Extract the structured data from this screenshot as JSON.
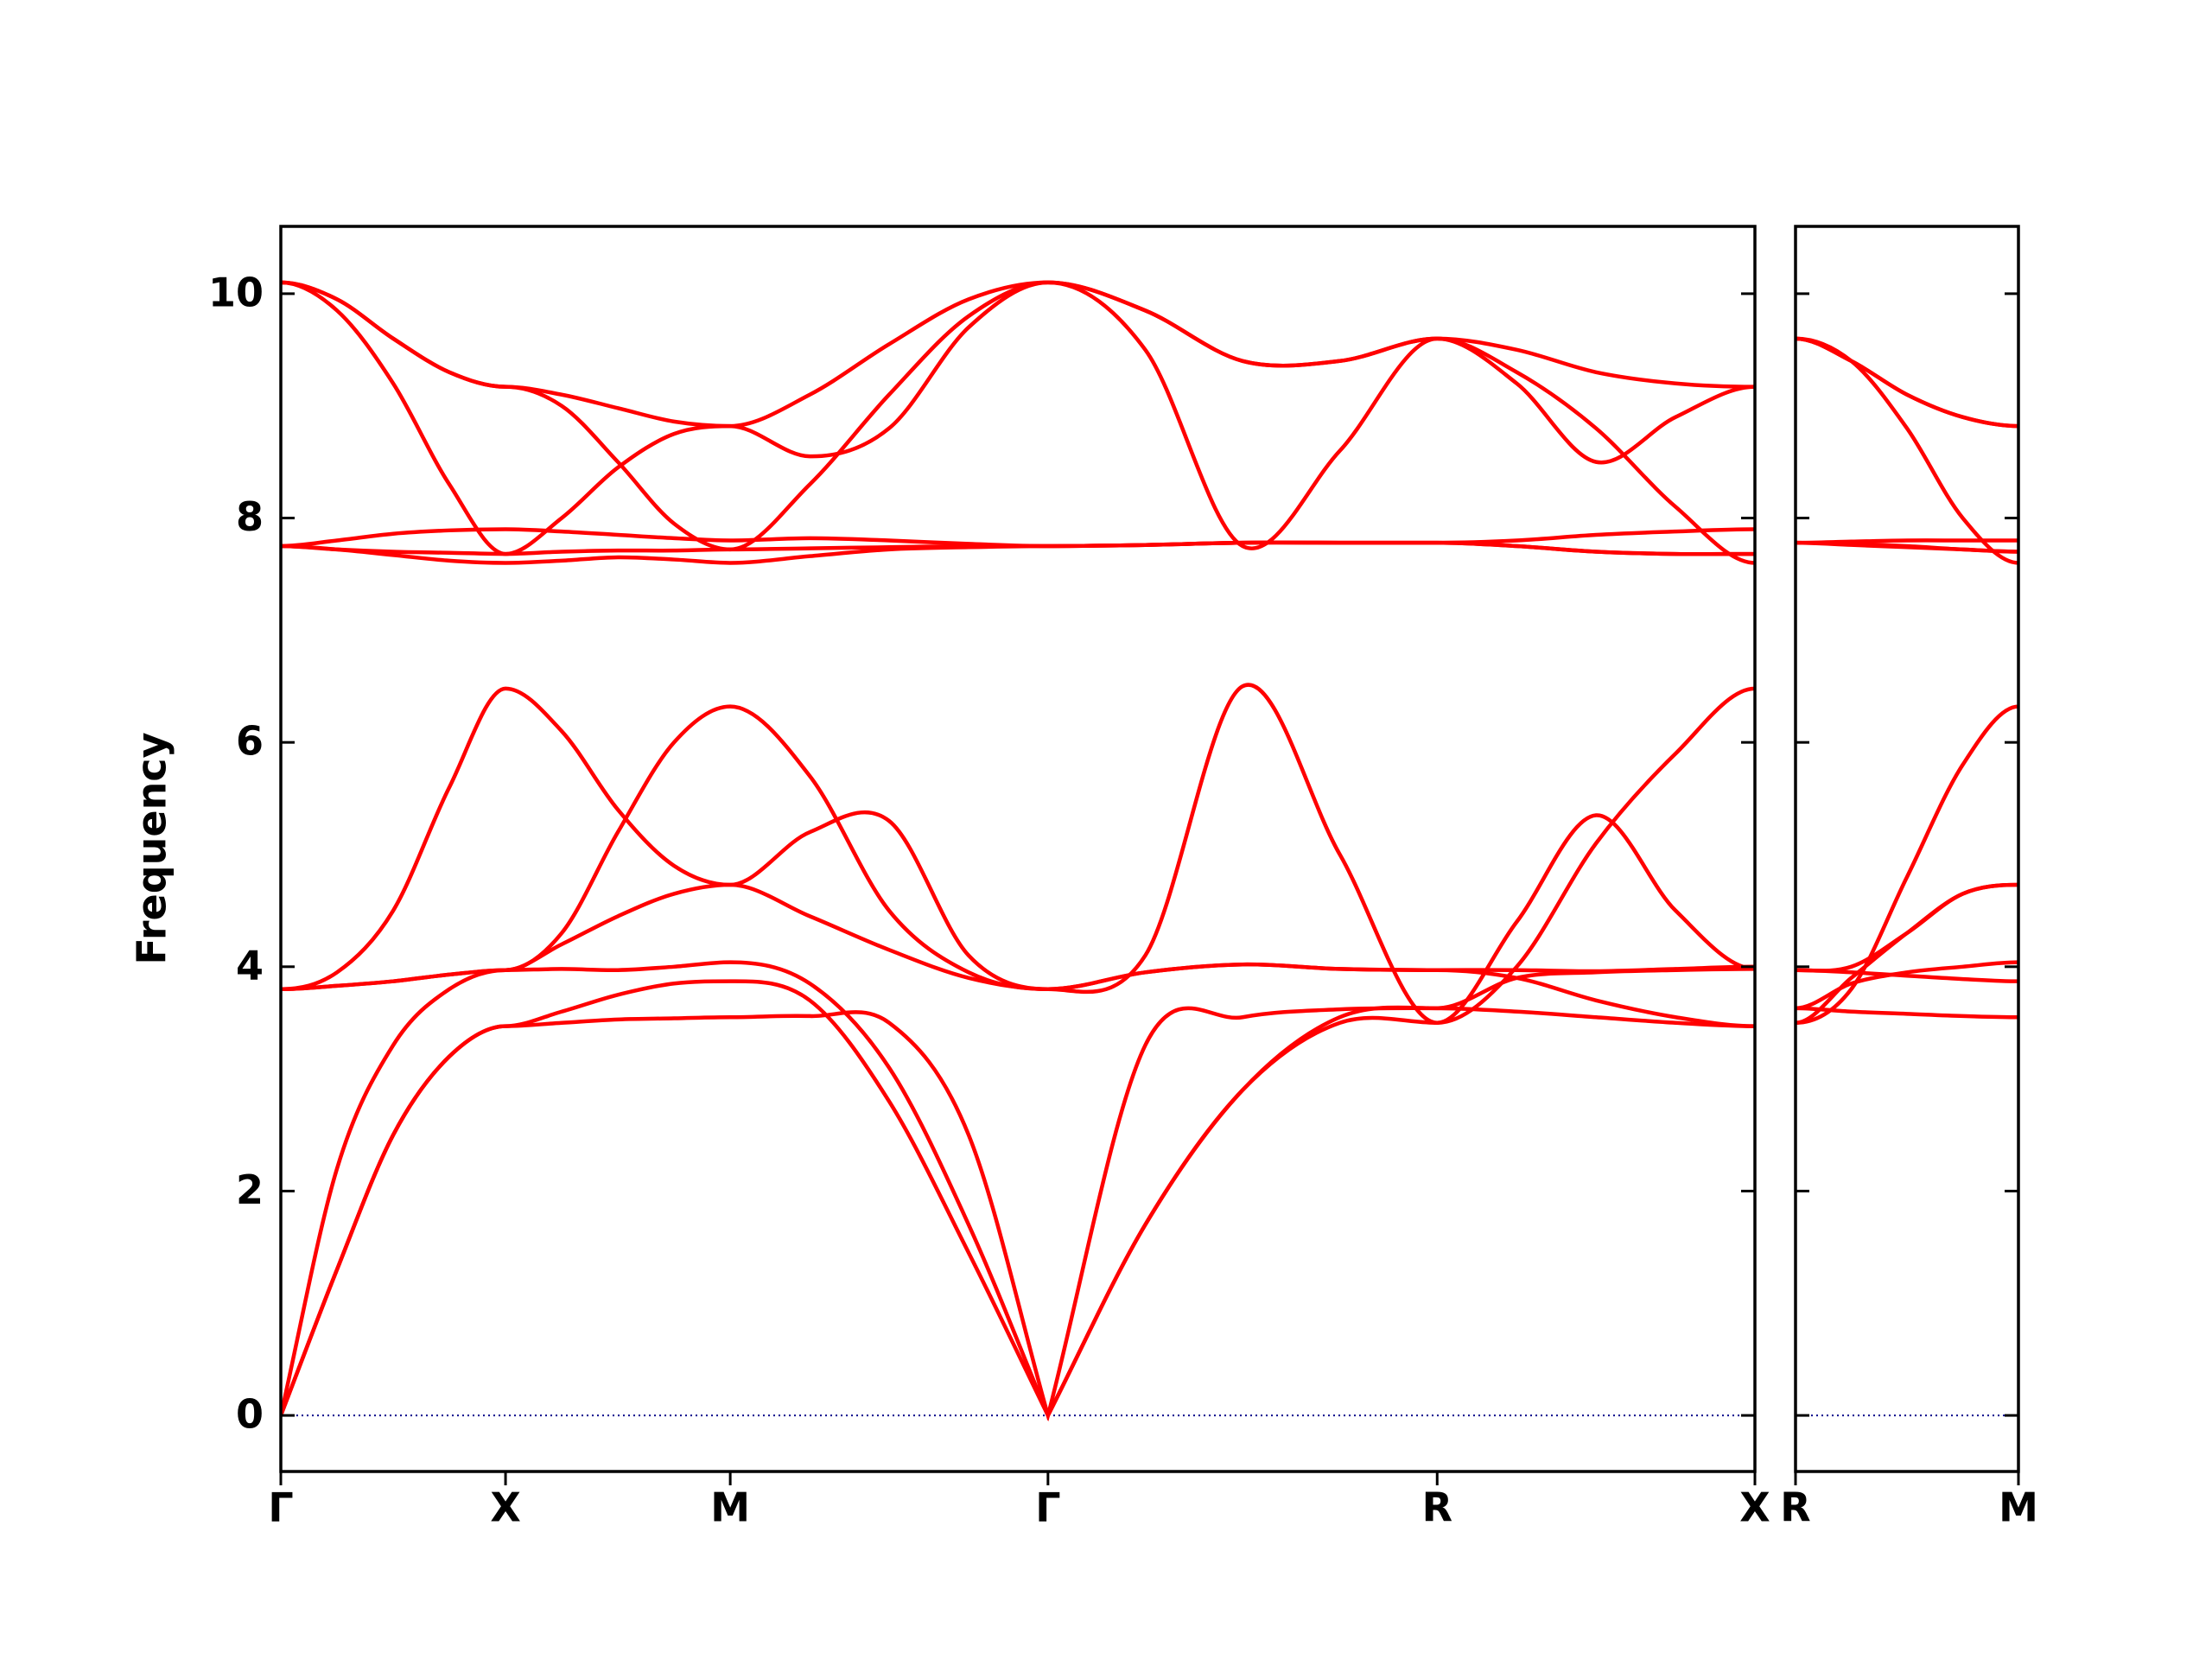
{
  "chart_data": [
    {
      "type": "line",
      "ylabel": "Frequency",
      "xlim": [
        0,
        6.56
      ],
      "ylim": [
        -0.5,
        10.6
      ],
      "xticks": [
        {
          "value": 0,
          "label": "Γ"
        },
        {
          "value": 1,
          "label": "X"
        },
        {
          "value": 2,
          "label": "M"
        },
        {
          "value": 3.414,
          "label": "Γ"
        },
        {
          "value": 5.146,
          "label": "R"
        },
        {
          "value": 6.56,
          "label": "X"
        }
      ],
      "yticks": [
        0,
        2,
        4,
        6,
        8,
        10
      ],
      "show_ytick_labels": true,
      "hline": {
        "value": 0,
        "color": "#00008b"
      },
      "x": [
        0,
        0.25,
        0.5,
        0.75,
        1,
        1.25,
        1.5,
        1.75,
        2,
        2.354,
        2.707,
        3.061,
        3.414,
        3.847,
        4.28,
        4.713,
        5.146,
        5.5,
        5.853,
        6.207,
        6.56
      ],
      "series": [
        {
          "color": "#ff0000",
          "values": [
            0,
            1.3,
            2.5,
            3.2,
            3.47,
            3.5,
            3.53,
            3.54,
            3.55,
            3.56,
            3.5,
            2.5,
            0,
            1.7,
            2.9,
            3.55,
            3.63,
            3.6,
            3.55,
            3.5,
            3.47
          ]
        },
        {
          "color": "#ff0000",
          "values": [
            0,
            1.3,
            2.5,
            3.2,
            3.47,
            3.6,
            3.75,
            3.85,
            3.87,
            3.7,
            2.8,
            1.45,
            0,
            1.7,
            2.9,
            3.5,
            3.5,
            4.4,
            5.35,
            4.5,
            3.98
          ]
        },
        {
          "color": "#ff0000",
          "values": [
            0,
            2.2,
            3.3,
            3.8,
            3.97,
            3.98,
            3.97,
            4.0,
            4.04,
            3.85,
            3.1,
            1.7,
            0,
            3.3,
            3.55,
            3.62,
            3.63,
            3.9,
            3.95,
            3.97,
            3.98
          ]
        },
        {
          "color": "#ff0000",
          "values": [
            3.8,
            3.83,
            3.87,
            3.93,
            3.97,
            4.2,
            4.45,
            4.65,
            4.73,
            4.45,
            4.15,
            3.9,
            3.8,
            3.95,
            4.02,
            3.98,
            3.97,
            3.97,
            3.96,
            3.98,
            4.0
          ]
        },
        {
          "color": "#ff0000",
          "values": [
            3.8,
            3.83,
            3.87,
            3.93,
            3.97,
            4.3,
            5.2,
            6.0,
            6.32,
            5.7,
            4.5,
            3.95,
            3.8,
            3.95,
            4.02,
            3.98,
            3.97,
            3.9,
            3.7,
            3.55,
            3.47
          ]
        },
        {
          "color": "#ff0000",
          "values": [
            3.8,
            3.95,
            4.5,
            5.6,
            6.48,
            6.1,
            5.4,
            4.9,
            4.73,
            5.2,
            5.3,
            4.1,
            3.8,
            4.1,
            6.5,
            5.0,
            3.5,
            4.0,
            5.1,
            5.9,
            6.48
          ]
        },
        {
          "color": "#ff0000",
          "values": [
            7.75,
            7.8,
            7.86,
            7.89,
            7.9,
            7.88,
            7.85,
            7.82,
            7.8,
            7.82,
            7.8,
            7.77,
            7.75,
            7.76,
            7.78,
            7.78,
            7.78,
            7.8,
            7.85,
            7.88,
            7.9
          ]
        },
        {
          "color": "#ff0000",
          "values": [
            7.75,
            7.72,
            7.67,
            7.62,
            7.6,
            7.62,
            7.65,
            7.63,
            7.6,
            7.66,
            7.72,
            7.74,
            7.75,
            7.76,
            7.78,
            7.78,
            7.78,
            7.75,
            7.7,
            7.68,
            7.68
          ]
        },
        {
          "color": "#ff0000",
          "values": [
            7.75,
            7.72,
            7.7,
            7.69,
            7.68,
            8.0,
            8.45,
            8.75,
            8.82,
            8.55,
            8.8,
            9.7,
            10.1,
            9.85,
            9.4,
            9.4,
            9.6,
            9.5,
            9.3,
            9.2,
            9.17
          ]
        },
        {
          "color": "#ff0000",
          "values": [
            10.1,
            9.85,
            9.2,
            8.3,
            7.68,
            7.7,
            7.71,
            7.71,
            7.72,
            7.73,
            7.74,
            7.75,
            7.75,
            7.76,
            7.78,
            7.78,
            7.78,
            7.75,
            7.7,
            7.68,
            7.68
          ]
        },
        {
          "color": "#ff0000",
          "values": [
            10.1,
            9.95,
            9.6,
            9.3,
            9.17,
            9.0,
            8.5,
            7.95,
            7.72,
            8.3,
            9.1,
            9.8,
            10.1,
            9.5,
            7.75,
            8.6,
            9.6,
            9.3,
            8.8,
            8.1,
            7.6
          ]
        },
        {
          "color": "#ff0000",
          "values": [
            10.1,
            9.95,
            9.6,
            9.3,
            9.17,
            9.1,
            8.98,
            8.86,
            8.82,
            9.1,
            9.55,
            9.95,
            10.1,
            9.85,
            9.4,
            9.4,
            9.6,
            9.2,
            8.5,
            8.9,
            9.17
          ]
        }
      ]
    },
    {
      "type": "line",
      "xlim": [
        0,
        1
      ],
      "ylim": [
        -0.5,
        10.6
      ],
      "xticks": [
        {
          "value": 0,
          "label": "R"
        },
        {
          "value": 1,
          "label": "M"
        }
      ],
      "yticks": [
        0,
        2,
        4,
        6,
        8,
        10
      ],
      "show_ytick_labels": false,
      "hline": {
        "value": 0,
        "color": "#00008b"
      },
      "x": [
        0,
        0.25,
        0.5,
        0.75,
        1
      ],
      "series": [
        {
          "color": "#ff0000",
          "values": [
            3.63,
            3.6,
            3.58,
            3.56,
            3.55
          ]
        },
        {
          "color": "#ff0000",
          "values": [
            3.5,
            3.8,
            4.8,
            5.8,
            6.32
          ]
        },
        {
          "color": "#ff0000",
          "values": [
            3.63,
            3.85,
            3.95,
            4.0,
            4.04
          ]
        },
        {
          "color": "#ff0000",
          "values": [
            3.97,
            4.0,
            4.3,
            4.65,
            4.73
          ]
        },
        {
          "color": "#ff0000",
          "values": [
            3.97,
            3.95,
            3.92,
            3.89,
            3.87
          ]
        },
        {
          "color": "#ff0000",
          "values": [
            3.5,
            3.9,
            4.3,
            4.65,
            4.73
          ]
        },
        {
          "color": "#ff0000",
          "values": [
            7.78,
            7.79,
            7.8,
            7.8,
            7.8
          ]
        },
        {
          "color": "#ff0000",
          "values": [
            7.78,
            7.76,
            7.74,
            7.72,
            7.7
          ]
        },
        {
          "color": "#ff0000",
          "values": [
            9.6,
            9.4,
            9.1,
            8.9,
            8.82
          ]
        },
        {
          "color": "#ff0000",
          "values": [
            7.78,
            7.77,
            7.75,
            7.72,
            7.7
          ]
        },
        {
          "color": "#ff0000",
          "values": [
            9.6,
            9.4,
            8.8,
            8.0,
            7.6
          ]
        },
        {
          "color": "#ff0000",
          "values": [
            9.6,
            9.4,
            9.1,
            8.9,
            8.82
          ]
        }
      ]
    }
  ]
}
